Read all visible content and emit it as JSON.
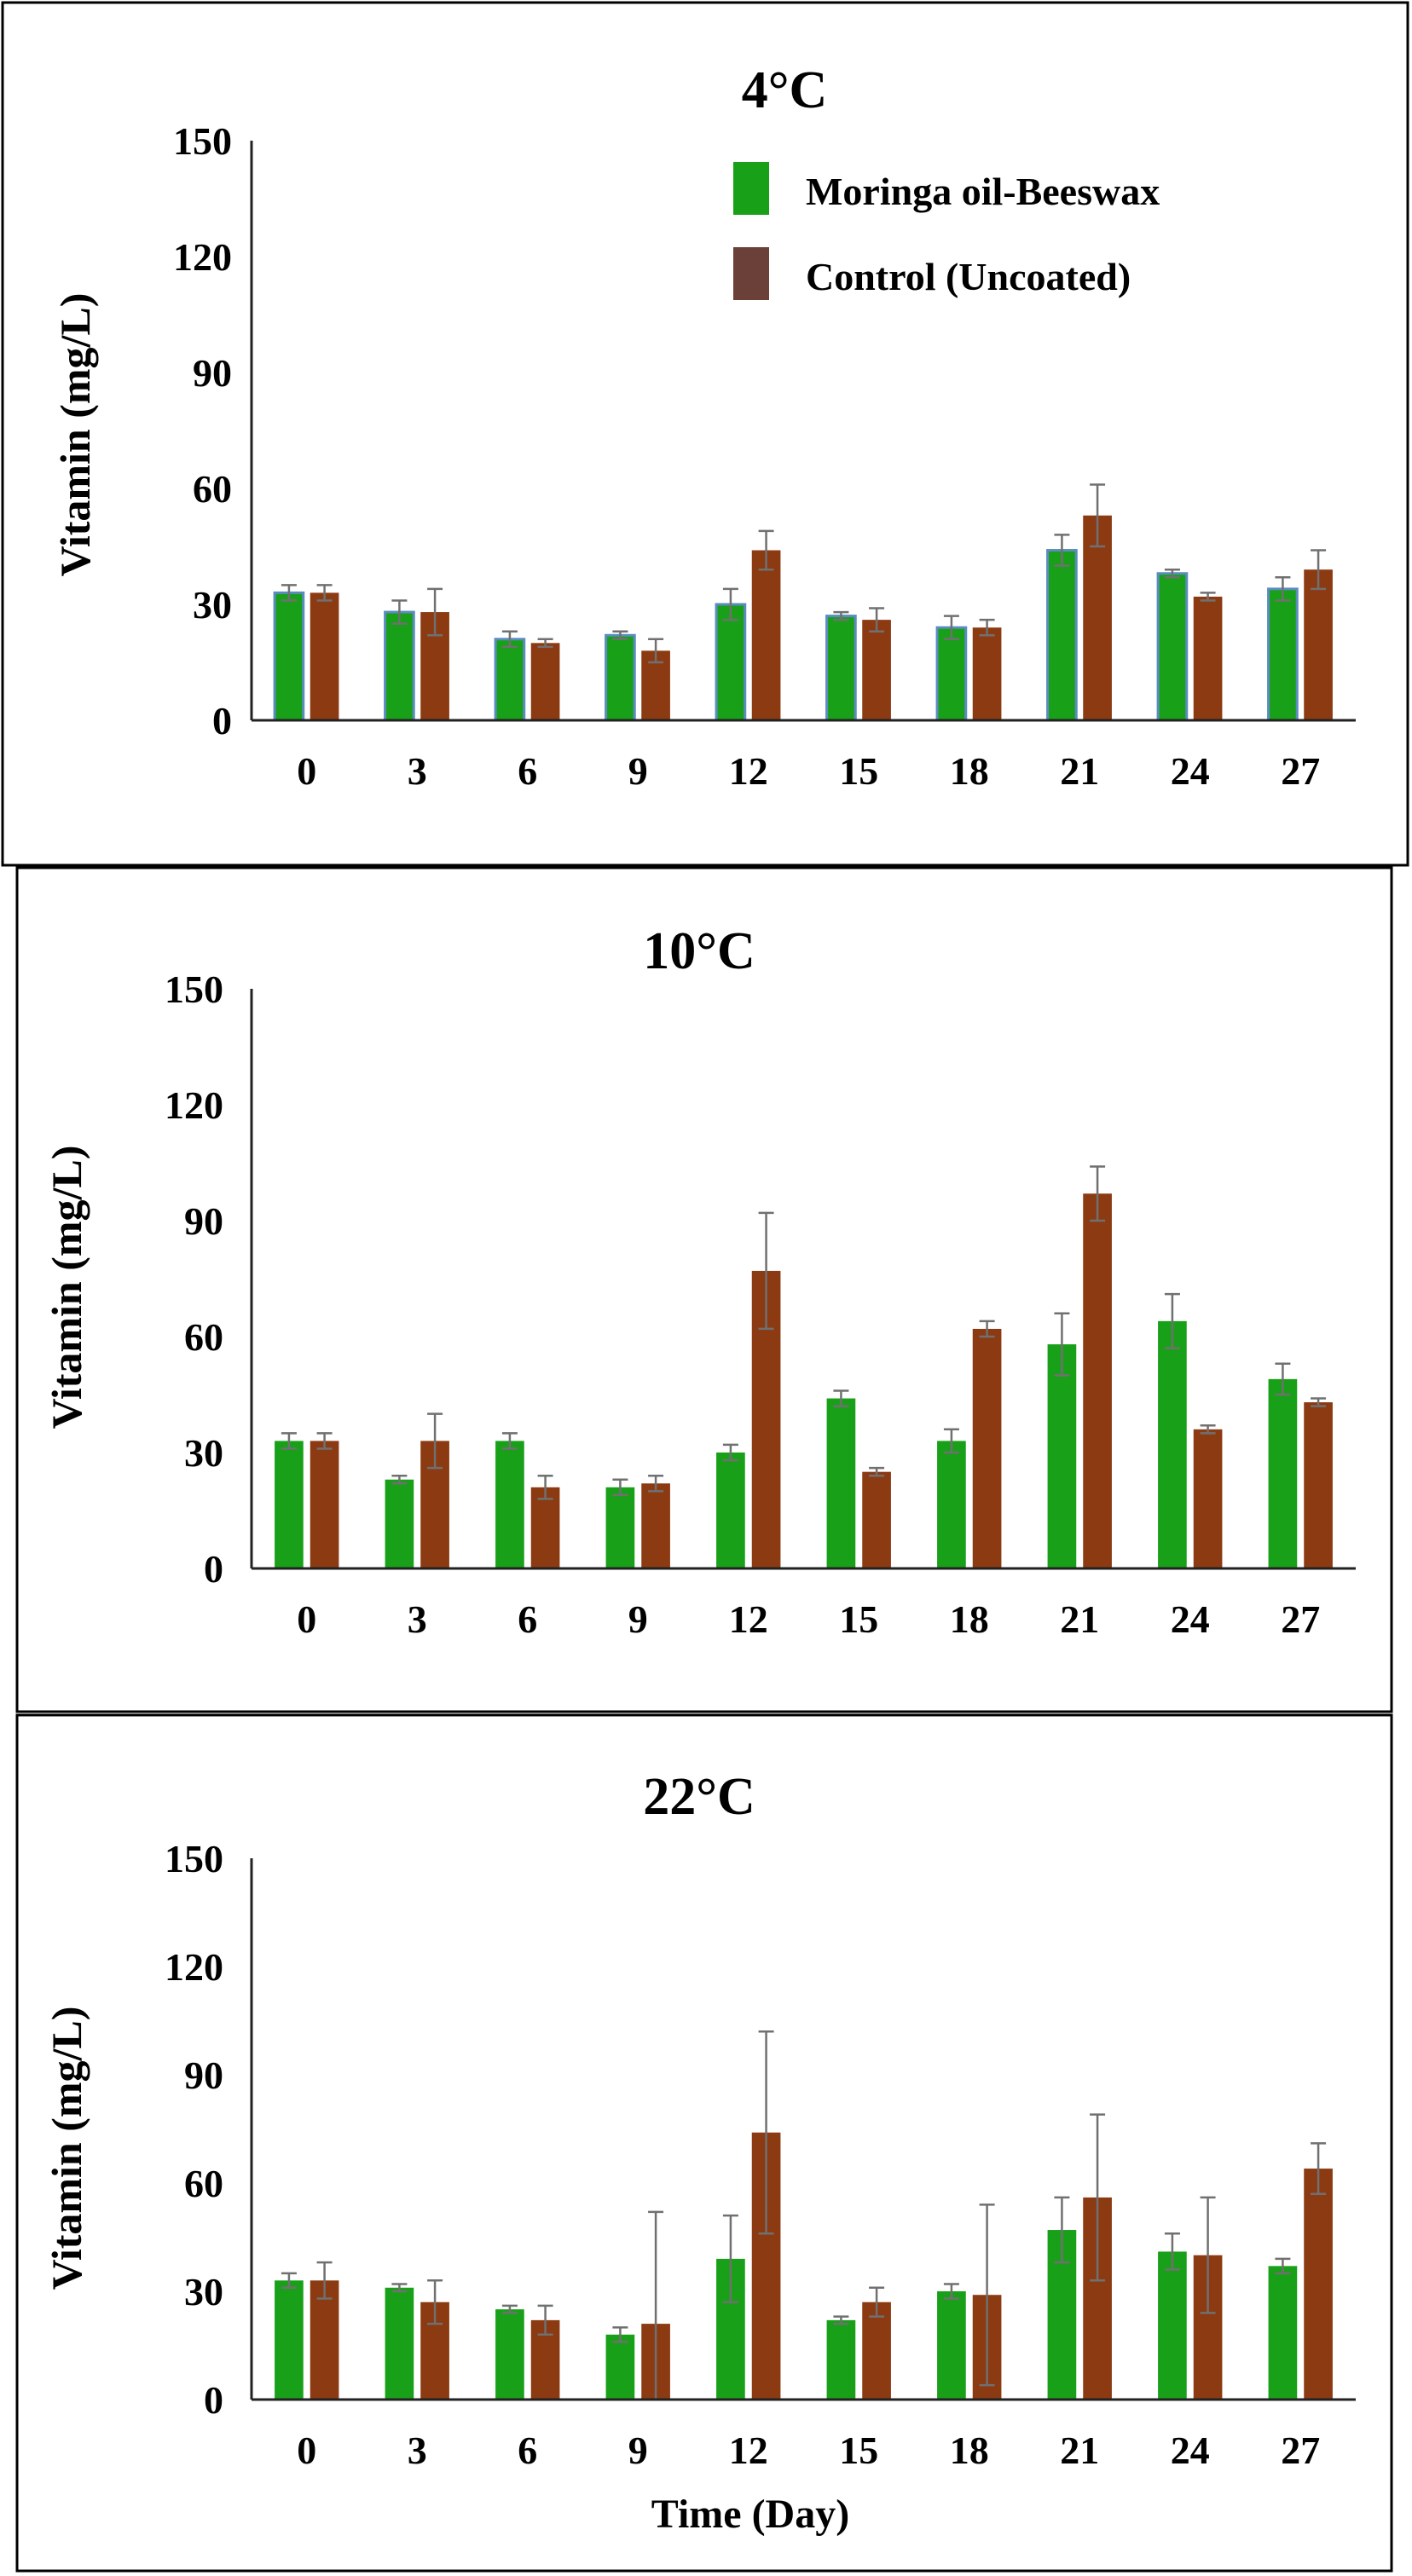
{
  "colors": {
    "series1": "#19a019",
    "series1_edge": "#5b8cc0",
    "series2": "#8b3a12",
    "series2_legend": "#6b4038",
    "errorbar": "#707070"
  },
  "chart_data": [
    {
      "type": "bar",
      "title": "4°C",
      "xlabel": "",
      "ylabel": "Vitamin (mg/L)",
      "ylim": [
        0,
        150
      ],
      "yticks": [
        "0",
        "30",
        "60",
        "90",
        "120",
        "150"
      ],
      "categories": [
        "0",
        "3",
        "6",
        "9",
        "12",
        "15",
        "18",
        "21",
        "24",
        "27"
      ],
      "legend": [
        "Moringa oil-Beeswax",
        "Control (Uncoated)"
      ],
      "legend_position": "top-right",
      "series": [
        {
          "name": "Moringa oil-Beeswax",
          "values": [
            33,
            28,
            21,
            22,
            30,
            27,
            24,
            44,
            38,
            34
          ],
          "errors": [
            2,
            3,
            2,
            1,
            4,
            1,
            3,
            4,
            1,
            3
          ]
        },
        {
          "name": "Control (Uncoated)",
          "values": [
            33,
            28,
            20,
            18,
            44,
            26,
            24,
            53,
            32,
            39
          ],
          "errors": [
            2,
            6,
            1,
            3,
            5,
            3,
            2,
            8,
            1,
            5
          ]
        }
      ]
    },
    {
      "type": "bar",
      "title": "10°C",
      "xlabel": "",
      "ylabel": "Vitamin (mg/L)",
      "ylim": [
        0,
        150
      ],
      "yticks": [
        "0",
        "30",
        "60",
        "90",
        "120",
        "150"
      ],
      "categories": [
        "0",
        "3",
        "6",
        "9",
        "12",
        "15",
        "18",
        "21",
        "24",
        "27"
      ],
      "series": [
        {
          "name": "Moringa oil-Beeswax",
          "values": [
            33,
            23,
            33,
            21,
            30,
            44,
            33,
            58,
            64,
            49
          ],
          "errors": [
            2,
            1,
            2,
            2,
            2,
            2,
            3,
            8,
            7,
            4
          ]
        },
        {
          "name": "Control (Uncoated)",
          "values": [
            33,
            33,
            21,
            22,
            77,
            25,
            62,
            97,
            36,
            43
          ],
          "errors": [
            2,
            7,
            3,
            2,
            15,
            1,
            2,
            7,
            1,
            1
          ]
        }
      ]
    },
    {
      "type": "bar",
      "title": "22°C",
      "xlabel": "Time (Day)",
      "ylabel": "Vitamin (mg/L)",
      "ylim": [
        0,
        150
      ],
      "yticks": [
        "0",
        "30",
        "60",
        "90",
        "120",
        "150"
      ],
      "categories": [
        "0",
        "3",
        "6",
        "9",
        "12",
        "15",
        "18",
        "21",
        "24",
        "27"
      ],
      "series": [
        {
          "name": "Moringa oil-Beeswax",
          "values": [
            33,
            31,
            25,
            18,
            39,
            22,
            30,
            47,
            41,
            37
          ],
          "errors": [
            2,
            1,
            1,
            2,
            12,
            1,
            2,
            9,
            5,
            2
          ]
        },
        {
          "name": "Control (Uncoated)",
          "values": [
            33,
            27,
            22,
            21,
            74,
            27,
            29,
            56,
            40,
            64
          ],
          "errors": [
            5,
            6,
            4,
            31,
            28,
            4,
            25,
            23,
            16,
            7
          ]
        }
      ]
    }
  ]
}
